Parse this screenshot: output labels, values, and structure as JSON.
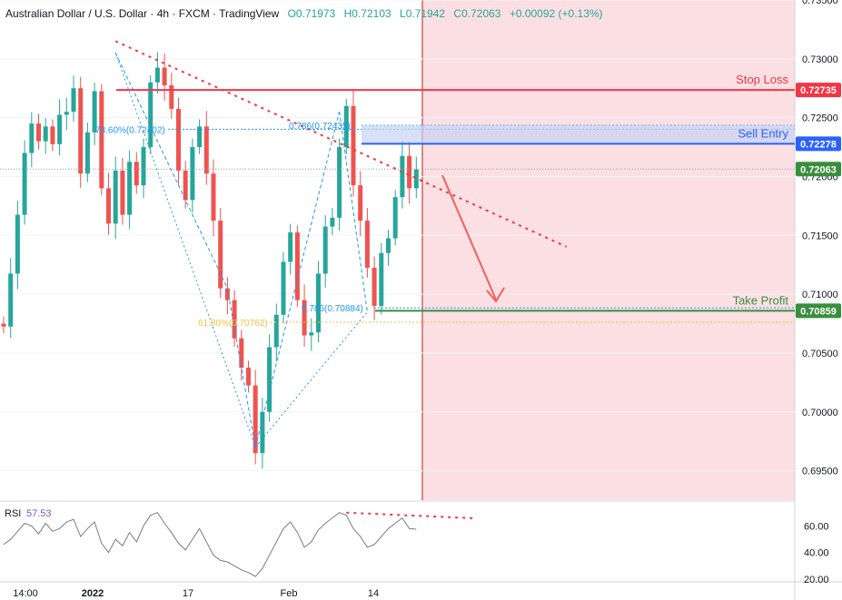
{
  "header": {
    "title": "Australian Dollar / U.S. Dollar · 4h · FXCM · TradingView",
    "open": "O0.71973",
    "high": "H0.72103",
    "low": "L0.71942",
    "close": "C0.72063",
    "change": "+0.00092 (+0.13%)"
  },
  "colors": {
    "up": "#26a69a",
    "down": "#ef5350",
    "stop_loss": "#f23645",
    "sell_entry": "#2962ff",
    "take_profit": "#388e3c",
    "zone": "#fcdfe2",
    "harmonic": "#2196f3",
    "fib_yellow": "#f5c242",
    "trendline": "#f23645",
    "rsi": "#787b86"
  },
  "chart_data": [
    {
      "type": "candlestick",
      "symbol": "AUDUSD",
      "timeframe": "4h",
      "ylim": [
        0.6925,
        0.735
      ],
      "y_ticks": [
        "0.73500",
        "0.73000",
        "0.72500",
        "0.72000",
        "0.71500",
        "0.71000",
        "0.70500",
        "0.70000",
        "0.69500"
      ],
      "x_ticks": [
        "14:00",
        "2022",
        "17",
        "Feb",
        "14"
      ],
      "close_path": [
        0.7085,
        0.712,
        0.716,
        0.723,
        0.7245,
        0.722,
        0.725,
        0.7225,
        0.724,
        0.726,
        0.727,
        0.7215,
        0.724,
        0.7265,
        0.72,
        0.716,
        0.7195,
        0.7175,
        0.721,
        0.718,
        0.723,
        0.7275,
        0.7305,
        0.728,
        0.725,
        0.7215,
        0.718,
        0.7215,
        0.725,
        0.72,
        0.715,
        0.711,
        0.709,
        0.7075,
        0.704,
        0.7015,
        0.6975,
        0.7,
        0.7045,
        0.709,
        0.7125,
        0.714,
        0.71,
        0.706,
        0.708,
        0.712,
        0.715,
        0.7175,
        0.7225,
        0.725,
        0.72,
        0.716,
        0.711,
        0.7095,
        0.713,
        0.716,
        0.7185,
        0.721,
        0.72,
        0.7206
      ],
      "levels": [
        {
          "label": "Stop Loss",
          "value": 0.72735,
          "price_label": "0.72735"
        },
        {
          "label": "Sell Entry",
          "value": 0.72278,
          "price_label": "0.72278"
        },
        {
          "label": "Take Profit",
          "value": 0.70859,
          "price_label": "0.70859"
        },
        {
          "label": "",
          "value": 0.72063,
          "price_label": "0.72063"
        }
      ],
      "fib_annotations": [
        {
          "label": "78.60%(0.72402)",
          "value": 0.72402
        },
        {
          "label": "0.786(0.72435)",
          "value": 0.72435
        },
        {
          "label": "0.786(0.70884)",
          "value": 0.70884
        },
        {
          "label": "61.80%(0.70762)",
          "value": 0.70762
        }
      ],
      "harmonic_points": [
        [
          16,
          0.7305
        ],
        [
          32,
          0.7105
        ],
        [
          36,
          0.697
        ],
        [
          48,
          0.7255
        ],
        [
          52,
          0.7085
        ]
      ],
      "trendline": [
        [
          16,
          0.7315
        ],
        [
          74,
          0.7175
        ]
      ]
    },
    {
      "type": "line",
      "name": "RSI",
      "value_label": "57.53",
      "ylim": [
        18,
        78
      ],
      "y_ticks": [
        "60.00",
        "40.00",
        "20.00"
      ],
      "values": [
        46,
        50,
        56,
        62,
        60,
        54,
        62,
        56,
        58,
        63,
        65,
        52,
        58,
        63,
        47,
        40,
        50,
        45,
        55,
        48,
        60,
        68,
        70,
        62,
        55,
        47,
        42,
        50,
        58,
        48,
        38,
        34,
        33,
        30,
        27,
        25,
        22,
        28,
        38,
        48,
        58,
        63,
        55,
        44,
        48,
        57,
        62,
        66,
        70,
        68,
        58,
        52,
        44,
        46,
        52,
        58,
        62,
        66,
        58,
        57.53
      ],
      "trendline": [
        [
          49,
          70
        ],
        [
          66,
          63
        ]
      ]
    }
  ]
}
